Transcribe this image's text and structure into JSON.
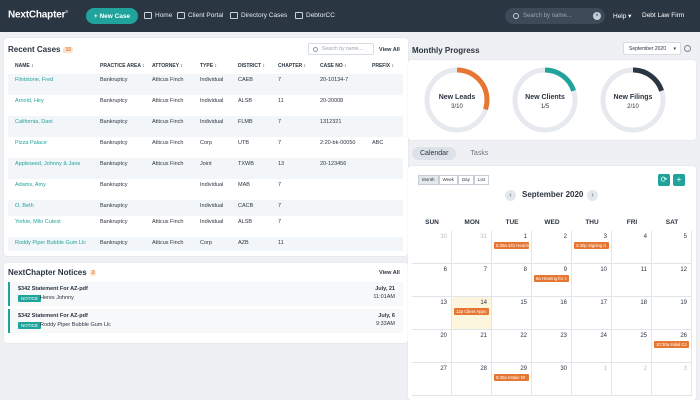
{
  "brand": {
    "logo": "NextChapter",
    "reg": "®"
  },
  "toolbar": {
    "new_case": "+ New Case",
    "home": "Home",
    "client_portal": "Client Portal",
    "directory_cases": "Directory Cases",
    "debtorcc": "DebtorCC",
    "search_placeholder": "Search by name...",
    "help": "Help",
    "firm": "Debt Law Firm"
  },
  "recent_cases": {
    "title": "Recent Cases",
    "count": "15",
    "search_placeholder": "Search by name...",
    "view_all": "View All",
    "columns": [
      "NAME ↕",
      "PRACTICE AREA ↕",
      "ATTORNEY ↕",
      "TYPE ↕",
      "DISTRICT ↕",
      "CHAPTER ↕",
      "CASE NO ↕",
      "PREFIX ↕"
    ],
    "rows": [
      [
        "Flintstone, Fred",
        "Bankruptcy",
        "Atticus Finch",
        "Individual",
        "CAEB",
        "7",
        "20-10134-7",
        ""
      ],
      [
        "Arnold, Hey",
        "Bankruptcy",
        "Atticus Finch",
        "Individual",
        "ALSB",
        "11",
        "20-20008",
        ""
      ],
      [
        "California, Dani",
        "Bankruptcy",
        "Atticus Finch",
        "Individual",
        "FLMB",
        "7",
        "1312321",
        ""
      ],
      [
        "Pizza Palace",
        "Bankruptcy",
        "Atticus Finch",
        "Corp",
        "UTB",
        "7",
        "2:20-bk-00050",
        "ABC"
      ],
      [
        "Appleseed, Johnny & Jane",
        "Bankruptcy",
        "Atticus Finch",
        "Joint",
        "TXWB",
        "13",
        "20-123456",
        ""
      ],
      [
        "Adams, Amy",
        "Bankruptcy",
        "",
        "Individual",
        "MAB",
        "7",
        "",
        ""
      ],
      [
        "O, Beth",
        "Bankruptcy",
        "",
        "Individual",
        "CACB",
        "7",
        "",
        ""
      ],
      [
        "Yorkie, Milo Cutest",
        "Bankruptcy",
        "Atticus Finch",
        "Individual",
        "ALSB",
        "7",
        "",
        ""
      ],
      [
        "Roddy Piper Bubble Gum Llc",
        "Bankruptcy",
        "Atticus Finch",
        "Corp",
        "AZB",
        "11",
        "",
        ""
      ]
    ]
  },
  "notices": {
    "title": "NextChapter Notices",
    "count": "2",
    "view_all": "View All",
    "items": [
      {
        "title": "$342 Statement For AZ-pdf",
        "tag": "NOTICE",
        "who": "Heres Johnny",
        "date": "July, 21",
        "time": "11:01AM"
      },
      {
        "title": "$342 Statement For AZ-pdf",
        "tag": "NOTICE",
        "who": "Roddy Piper Bubble Gum Llc",
        "date": "July, 6",
        "time": "9:33AM"
      }
    ]
  },
  "progress": {
    "title": "Monthly Progress",
    "month": "September 2020",
    "rings": [
      {
        "label": "New Leads",
        "value": "3/10",
        "fraction": 0.3,
        "color": "#e57733"
      },
      {
        "label": "New Clients",
        "value": "1/5",
        "fraction": 0.2,
        "color": "#1fa39a"
      },
      {
        "label": "New Filings",
        "value": "2/10",
        "fraction": 0.2,
        "color": "#2b3643"
      }
    ]
  },
  "calendar": {
    "tabs": [
      "Calendar",
      "Tasks"
    ],
    "views": [
      "Month",
      "Week",
      "Day",
      "List"
    ],
    "title": "September 2020",
    "prev": "‹",
    "next": "›",
    "refresh": "⟳",
    "add": "+",
    "dow": [
      "SUN",
      "MON",
      "TUE",
      "WED",
      "THU",
      "FRI",
      "SAT"
    ],
    "weeks": [
      [
        "30",
        "31",
        "1",
        "2",
        "3",
        "4",
        "5"
      ],
      [
        "6",
        "7",
        "8",
        "9",
        "10",
        "11",
        "12"
      ],
      [
        "13",
        "14",
        "15",
        "16",
        "17",
        "18",
        "19"
      ],
      [
        "20",
        "21",
        "22",
        "23",
        "24",
        "25",
        "26"
      ],
      [
        "27",
        "28",
        "29",
        "30",
        "1",
        "2",
        "3"
      ]
    ],
    "events": [
      {
        "week": 0,
        "day": 2,
        "text": "5:30a 341 Hearin"
      },
      {
        "week": 0,
        "day": 4,
        "text": "4:30p Signing A"
      },
      {
        "week": 1,
        "day": 3,
        "text": "8a Hearing for J"
      },
      {
        "week": 2,
        "day": 1,
        "text": "12p Client Appo"
      },
      {
        "week": 3,
        "day": 6,
        "text": "10:30a Initial Cc"
      },
      {
        "week": 4,
        "day": 2,
        "text": "8:30a Intake W"
      }
    ]
  }
}
